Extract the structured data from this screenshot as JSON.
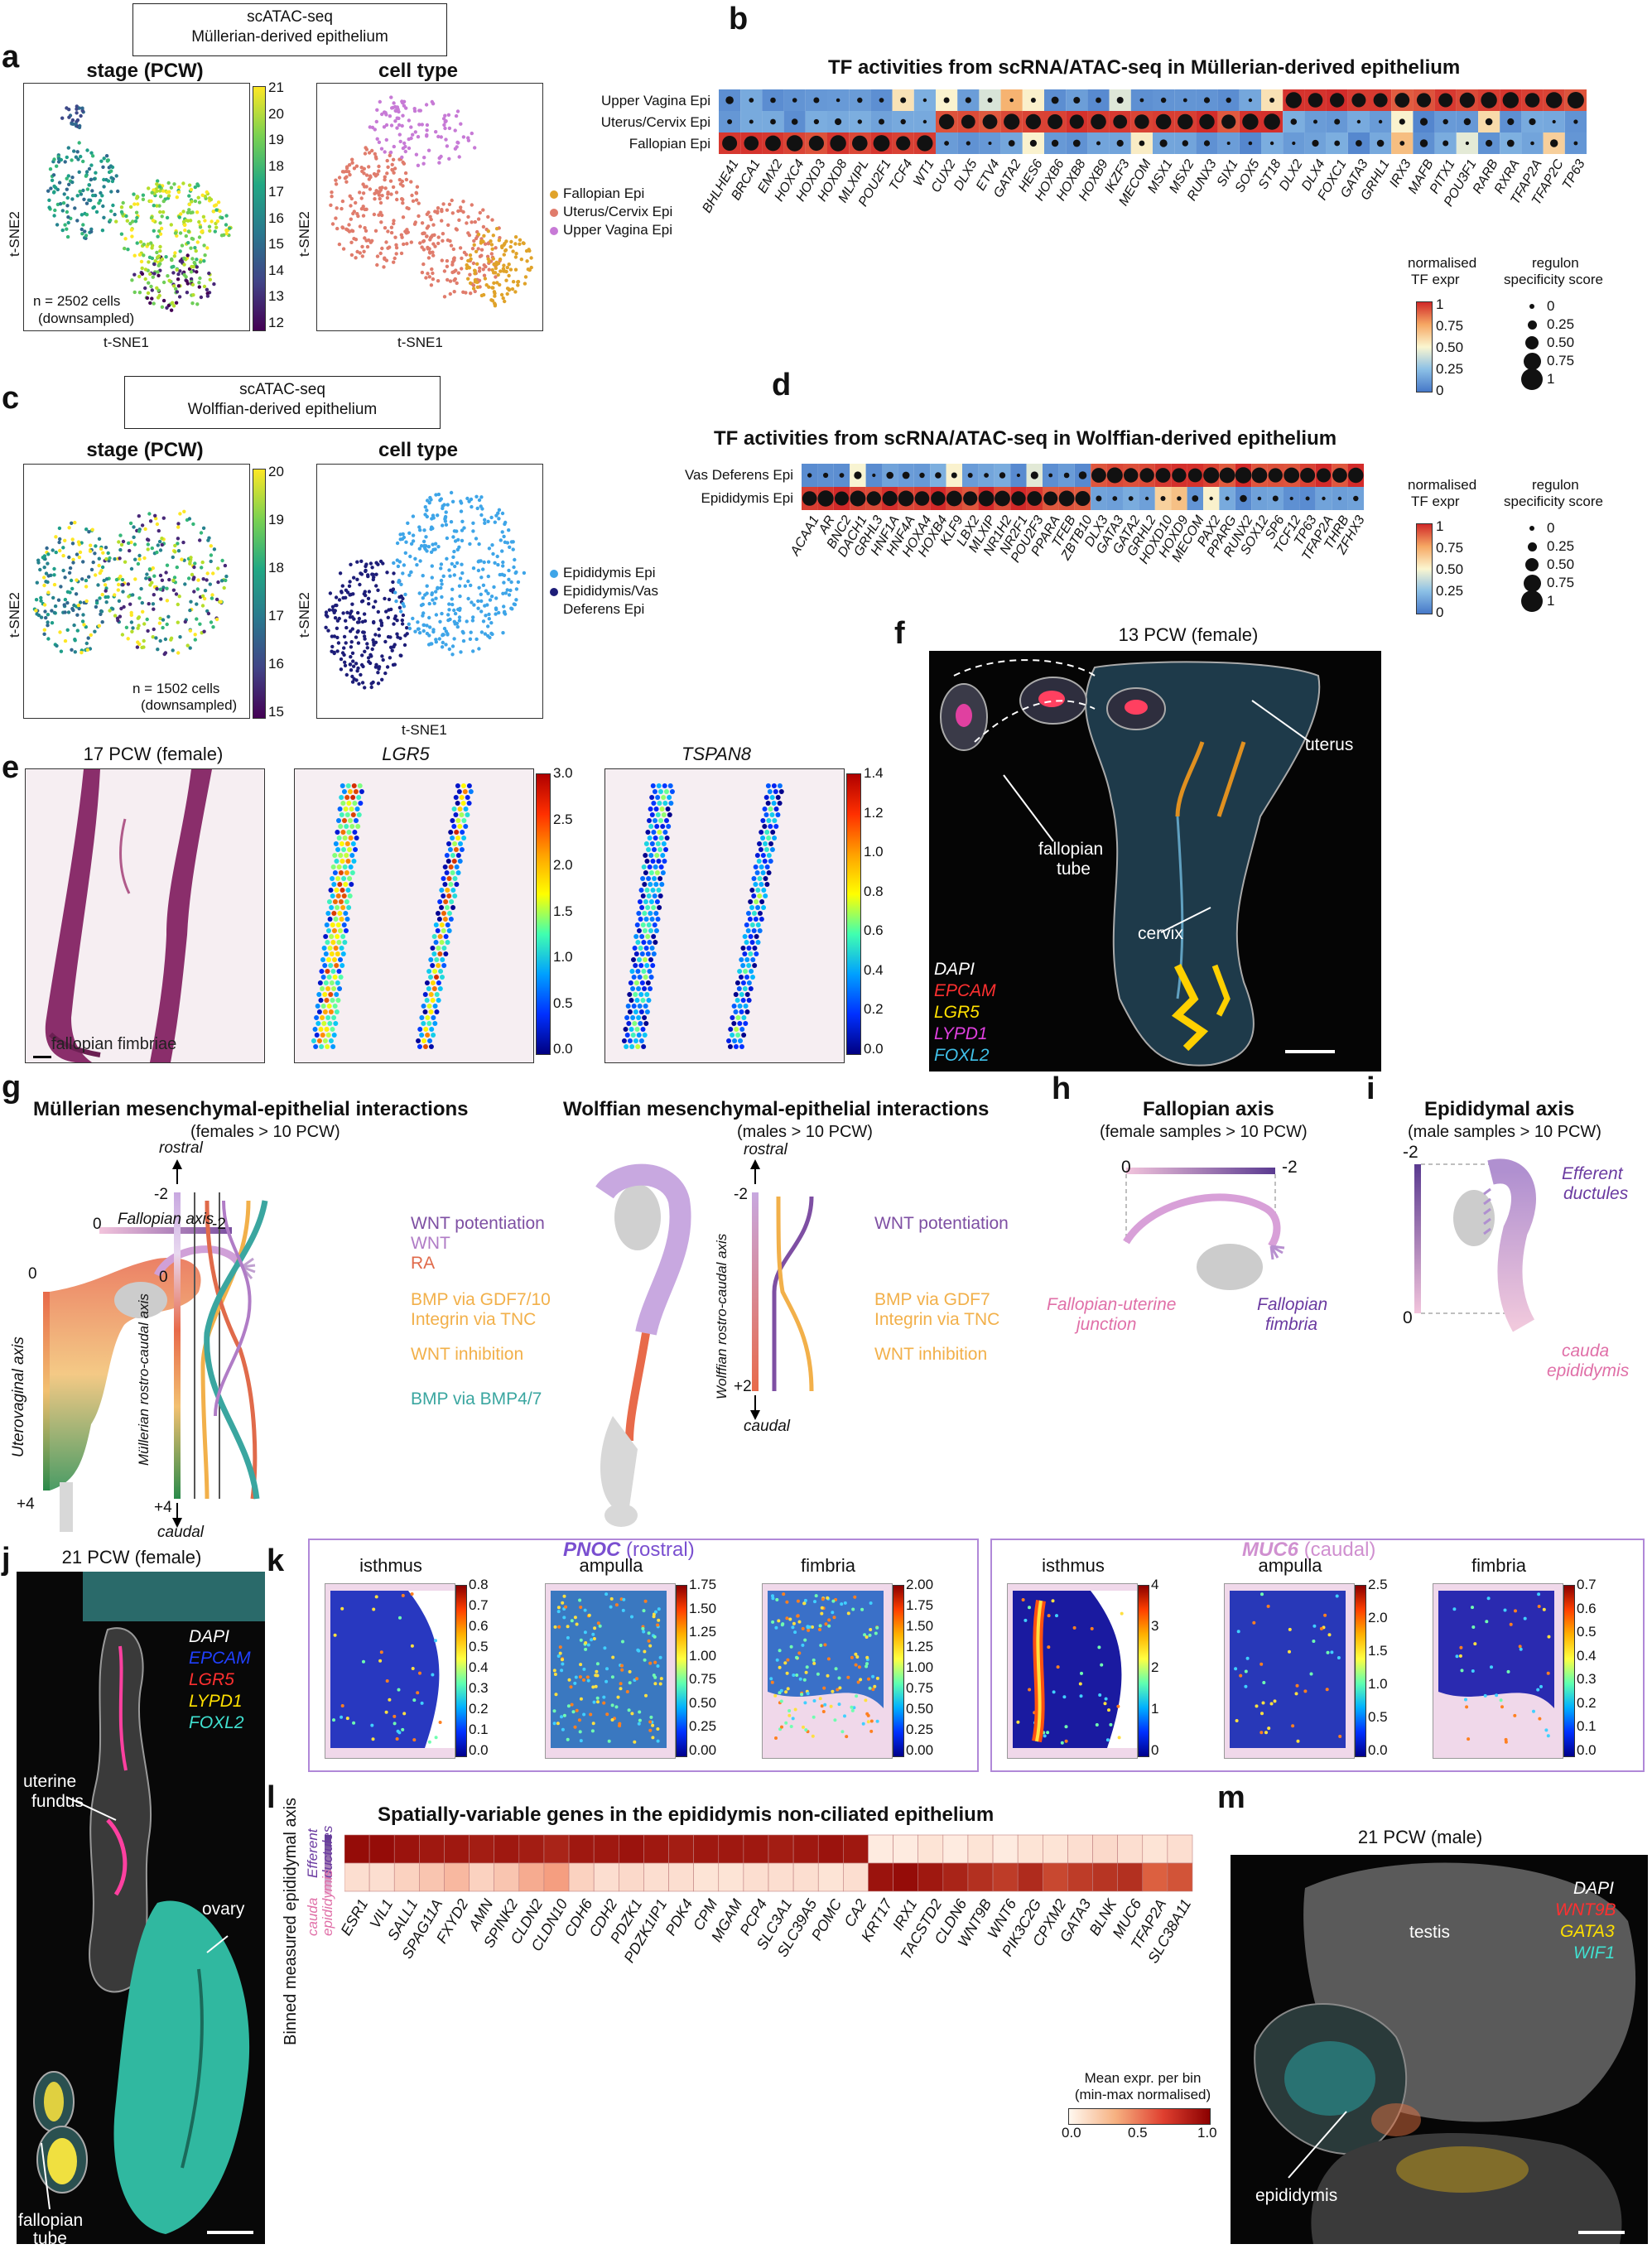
{
  "panel_letters": [
    "a",
    "b",
    "c",
    "d",
    "e",
    "f",
    "g",
    "h",
    "i",
    "j",
    "k",
    "l",
    "m"
  ],
  "colors": {
    "fallopian": "#e0a32a",
    "uterus": "#e07c6c",
    "vagina": "#c77ad6",
    "epididymis": "#3ea5e8",
    "epi_vas": "#1d1d78",
    "heat_low": "#fff4e0",
    "heat_high": "#8b0000"
  },
  "a": {
    "box_line1": "scATAC-seq",
    "box_line2": "Müllerian-derived epithelium",
    "left_title": "stage (PCW)",
    "right_title": "cell type",
    "x_label": "t-SNE1",
    "y_label": "t-SNE2",
    "n_line1": "n = 2502 cells",
    "n_line2": "(downsampled)",
    "colorbar_ticks": [
      "21",
      "20",
      "19",
      "18",
      "17",
      "16",
      "15",
      "14",
      "13",
      "12"
    ],
    "legend": [
      "Fallopian Epi",
      "Uterus/Cervix Epi",
      "Upper Vagina Epi"
    ]
  },
  "b": {
    "title": "TF activities from scRNA/ATAC-seq in Müllerian-derived epithelium",
    "rows": [
      "Upper Vagina Epi",
      "Uterus/Cervix Epi",
      "Fallopian Epi"
    ],
    "cols": [
      "BHLHE41",
      "BRCA1",
      "EMX2",
      "HOXC4",
      "HOXD3",
      "HOXD8",
      "MLXIPL",
      "POU2F1",
      "TCF4",
      "WT1",
      "CUX2",
      "DLX5",
      "ETV4",
      "GATA2",
      "HES6",
      "HOXB6",
      "HOXB8",
      "HOXB9",
      "IKZF3",
      "MECOM",
      "MSX1",
      "MSX2",
      "RUNX3",
      "SIX1",
      "SOX5",
      "ST18",
      "DLX2",
      "DLX4",
      "FOXC1",
      "GATA3",
      "GRHL1",
      "IRX3",
      "MAFB",
      "PITX1",
      "POU3F1",
      "RARB",
      "RXRA",
      "TFAP2A",
      "TFAP2C",
      "TP63"
    ],
    "legend_title_1a": "normalised",
    "legend_title_1b": "TF expr",
    "legend_title_2a": "regulon",
    "legend_title_2b": "specificity score",
    "color_ticks": [
      "1",
      "0.75",
      "0.50",
      "0.25",
      "0"
    ],
    "size_ticks": [
      "0",
      "0.25",
      "0.50",
      "0.75",
      "1"
    ]
  },
  "c": {
    "box_line1": "scATAC-seq",
    "box_line2": "Wolffian-derived epithelium",
    "left_title": "stage (PCW)",
    "right_title": "cell type",
    "x_label": "t-SNE1",
    "y_label": "t-SNE2",
    "n_line1": "n = 1502 cells",
    "n_line2": "(downsampled)",
    "colorbar_ticks": [
      "20",
      "19",
      "18",
      "17",
      "16",
      "15"
    ],
    "legend": [
      "Epididymis Epi",
      "Epididymis/Vas",
      "Deferens Epi"
    ]
  },
  "d": {
    "title": "TF activities from scRNA/ATAC-seq in Wolffian-derived epithelium",
    "rows": [
      "Vas Deferens Epi",
      "Epididymis Epi"
    ],
    "cols": [
      "ACAA1",
      "AR",
      "BNC2",
      "DACH1",
      "GRHL3",
      "HNF1A",
      "HNF4A",
      "HOXA4",
      "HOXB4",
      "KLF9",
      "LBX2",
      "MLXIP",
      "NR1H2",
      "NR2F1",
      "POU2F3",
      "PPARA",
      "TFEB",
      "ZBTB10",
      "DLX3",
      "GATA3",
      "GATA2",
      "GRHL2",
      "HOXD10",
      "HOXD9",
      "MECOM",
      "PAX2",
      "PPARG",
      "RUNX2",
      "SOX12",
      "SP6",
      "TCF12",
      "TP63",
      "TFAP2A",
      "THRB",
      "ZFHX3"
    ],
    "legend_title_1a": "normalised",
    "legend_title_1b": "TF expr",
    "legend_title_2a": "regulon",
    "legend_title_2b": "specificity score",
    "color_ticks": [
      "1",
      "0.75",
      "0.50",
      "0.25",
      "0"
    ],
    "size_ticks": [
      "0",
      "0.25",
      "0.50",
      "0.75",
      "1"
    ]
  },
  "e": {
    "titles": [
      "17 PCW (female)",
      "LGR5",
      "TSPAN8"
    ],
    "annotation": "fallopian fimbriae",
    "lgr5_ticks": [
      "3.0",
      "2.5",
      "2.0",
      "1.5",
      "1.0",
      "0.5",
      "0.0"
    ],
    "tspan8_ticks": [
      "1.4",
      "1.2",
      "1.0",
      "0.8",
      "0.6",
      "0.4",
      "0.2",
      "0.0"
    ]
  },
  "f": {
    "title": "13 PCW (female)",
    "labels": [
      "uterus",
      "fallopian",
      "tube",
      "cervix"
    ],
    "channels": [
      {
        "name": "DAPI",
        "color": "#ffffff"
      },
      {
        "name": "EPCAM",
        "color": "#ff3030"
      },
      {
        "name": "LGR5",
        "color": "#ffe000"
      },
      {
        "name": "LYPD1",
        "color": "#e040e0"
      },
      {
        "name": "FOXL2",
        "color": "#40c0e8"
      }
    ]
  },
  "g": {
    "title_left": "Müllerian mesenchymal-epithelial interactions",
    "sub_left": "(females > 10 PCW)",
    "title_right": "Wolffian mesenchymal-epithelial interactions",
    "sub_right": "(males > 10 PCW)",
    "fallopian_axis": "Fallopian axis",
    "fa_0": "0",
    "fa_m2": "-2",
    "uterovaginal_axis": "Uterovaginal axis",
    "uv_0": "0",
    "uv_p4": "+4",
    "rostral": "rostral",
    "caudal": "caudal",
    "m_axis": "Müllerian rostro-caudal axis",
    "m_m2": "-2",
    "m_0": "0",
    "m_p4": "+4",
    "w_axis": "Wolffian rostro-caudal axis",
    "w_m2": "-2",
    "w_p2": "+2",
    "left_signals": [
      {
        "text": "WNT potentiation",
        "color": "#7e4fa3"
      },
      {
        "text": "WNT",
        "color": "#b07cc6"
      },
      {
        "text": "RA",
        "color": "#e06a4a"
      },
      {
        "text": "BMP via GDF7/10",
        "color": "#f2b04a"
      },
      {
        "text": "Integrin via TNC",
        "color": "#f2b04a"
      },
      {
        "text": "WNT inhibition",
        "color": "#f2b04a"
      },
      {
        "text": "BMP via BMP4/7",
        "color": "#3aa6a0"
      }
    ],
    "right_signals": [
      {
        "text": "WNT potentiation",
        "color": "#7e4fa3"
      },
      {
        "text": "BMP via GDF7",
        "color": "#f2b04a"
      },
      {
        "text": "Integrin via TNC",
        "color": "#f2b04a"
      },
      {
        "text": "WNT inhibition",
        "color": "#f2b04a"
      }
    ]
  },
  "h": {
    "title": "Fallopian axis",
    "sub": "(female samples > 10 PCW)",
    "zero": "0",
    "m2": "-2",
    "junction_1": "Fallopian-uterine",
    "junction_2": "junction",
    "fimbria_1": "Fallopian",
    "fimbria_2": "fimbria"
  },
  "i": {
    "title": "Epididymal axis",
    "sub": "(male samples > 10 PCW)",
    "m2": "-2",
    "zero": "0",
    "eff_1": "Efferent",
    "eff_2": "ductules",
    "cauda_1": "cauda",
    "cauda_2": "epididymis"
  },
  "j": {
    "title": "21 PCW (female)",
    "channels": [
      {
        "name": "DAPI",
        "color": "#ffffff"
      },
      {
        "name": "EPCAM",
        "color": "#2040ff"
      },
      {
        "name": "LGR5",
        "color": "#ff3030"
      },
      {
        "name": "LYPD1",
        "color": "#ffe000"
      },
      {
        "name": "FOXL2",
        "color": "#40e0d0"
      }
    ],
    "labels": [
      "uterine",
      "fundus",
      "ovary",
      "fallopian",
      "tube"
    ]
  },
  "k": {
    "gene1": "PNOC",
    "gene1_note": "(rostral)",
    "gene2": "MUC6",
    "gene2_note": "(caudal)",
    "tile_titles": [
      "isthmus",
      "ampulla",
      "fimbria",
      "isthmus",
      "ampulla",
      "fimbria"
    ],
    "scales": [
      [
        "0.8",
        "0.7",
        "0.6",
        "0.5",
        "0.4",
        "0.3",
        "0.2",
        "0.1",
        "0.0"
      ],
      [
        "1.75",
        "1.50",
        "1.25",
        "1.00",
        "0.75",
        "0.50",
        "0.25",
        "0.00"
      ],
      [
        "2.00",
        "1.75",
        "1.50",
        "1.25",
        "1.00",
        "0.75",
        "0.50",
        "0.25",
        "0.00"
      ],
      [
        "4",
        "3",
        "2",
        "1",
        "0"
      ],
      [
        "2.5",
        "2.0",
        "1.5",
        "1.0",
        "0.5",
        "0.0"
      ],
      [
        "0.7",
        "0.6",
        "0.5",
        "0.4",
        "0.3",
        "0.2",
        "0.1",
        "0.0"
      ]
    ]
  },
  "l": {
    "title": "Spatially-variable genes in the epididymis non-ciliated epithelium",
    "y_axis": "Binned measured epididymal axis",
    "row_top_1": "Efferent",
    "row_top_2": "ductules",
    "row_bot_1": "cauda",
    "row_bot_2": "epididymis",
    "genes": [
      "ESR1",
      "VIL1",
      "SALL1",
      "SPAG11A",
      "FXYD2",
      "AMN",
      "SPINK2",
      "CLDN2",
      "CLDN10",
      "CDH6",
      "CDH2",
      "PDZK1",
      "PDZK1IP1",
      "PDK4",
      "CPM",
      "MGAM",
      "PCP4",
      "SLC3A1",
      "SLC39A5",
      "POMC",
      "CA2",
      "KRT17",
      "IRX1",
      "TACSTD2",
      "CLDN6",
      "WNT9B",
      "WNT6",
      "PIK3C2G",
      "CPXM2",
      "GATA3",
      "BLNK",
      "MUC6",
      "TFAP2A",
      "SLC38A11"
    ],
    "top_row": [
      0.95,
      0.95,
      0.92,
      0.9,
      0.9,
      0.88,
      0.9,
      0.88,
      0.85,
      0.9,
      0.9,
      0.92,
      0.9,
      0.88,
      0.9,
      0.9,
      0.9,
      0.88,
      0.9,
      0.92,
      0.9,
      0.05,
      0.05,
      0.08,
      0.05,
      0.08,
      0.05,
      0.08,
      0.08,
      0.1,
      0.12,
      0.1,
      0.08,
      0.1
    ],
    "bottom_row": [
      0.1,
      0.1,
      0.15,
      0.2,
      0.25,
      0.15,
      0.2,
      0.3,
      0.35,
      0.15,
      0.1,
      0.12,
      0.1,
      0.1,
      0.08,
      0.08,
      0.1,
      0.1,
      0.1,
      0.08,
      0.1,
      0.92,
      0.95,
      0.9,
      0.85,
      0.8,
      0.75,
      0.82,
      0.7,
      0.75,
      0.78,
      0.8,
      0.6,
      0.65
    ],
    "legend_title_1": "Mean expr. per bin",
    "legend_title_2": "(min-max normalised)",
    "legend_ticks": [
      "0.0",
      "0.5",
      "1.0"
    ]
  },
  "m": {
    "title": "21 PCW (male)",
    "testis": "testis",
    "epididymis": "epididymis",
    "channels": [
      {
        "name": "DAPI",
        "color": "#ffffff"
      },
      {
        "name": "WNT9B",
        "color": "#ff3030"
      },
      {
        "name": "GATA3",
        "color": "#ffe000"
      },
      {
        "name": "WIF1",
        "color": "#40e0d0"
      }
    ]
  }
}
